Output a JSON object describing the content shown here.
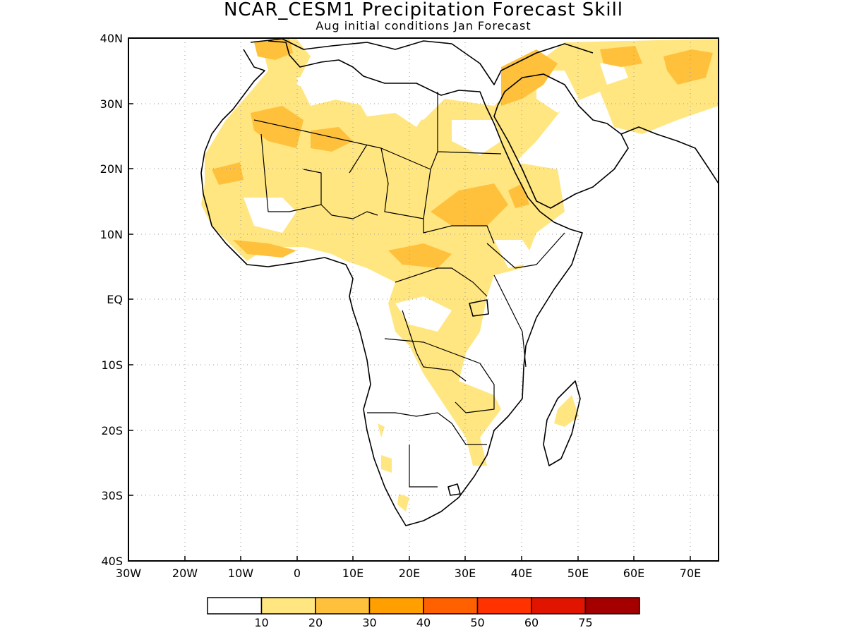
{
  "title": "NCAR_CESM1 Precipitation Forecast Skill",
  "subtitle": "Aug initial conditions  Jan Forecast",
  "map": {
    "lon_range": [
      -30,
      75
    ],
    "lat_range": [
      -40,
      40
    ],
    "lat_ticks": [
      {
        "value": 40,
        "label": "40N"
      },
      {
        "value": 30,
        "label": "30N"
      },
      {
        "value": 20,
        "label": "20N"
      },
      {
        "value": 10,
        "label": "10N"
      },
      {
        "value": 0,
        "label": "EQ"
      },
      {
        "value": -10,
        "label": "10S"
      },
      {
        "value": -20,
        "label": "20S"
      },
      {
        "value": -30,
        "label": "30S"
      },
      {
        "value": -40,
        "label": "40S"
      }
    ],
    "lon_ticks": [
      {
        "value": -30,
        "label": "30W"
      },
      {
        "value": -20,
        "label": "20W"
      },
      {
        "value": -10,
        "label": "10W"
      },
      {
        "value": 0,
        "label": "0"
      },
      {
        "value": 10,
        "label": "10E"
      },
      {
        "value": 20,
        "label": "20E"
      },
      {
        "value": 30,
        "label": "30E"
      },
      {
        "value": 40,
        "label": "40E"
      },
      {
        "value": 50,
        "label": "50E"
      },
      {
        "value": 60,
        "label": "60E"
      },
      {
        "value": 70,
        "label": "70E"
      }
    ],
    "grid": "dotted"
  },
  "colorbar": {
    "colors": [
      "#ffffff",
      "#ffe680",
      "#ffc03c",
      "#ffa000",
      "#ff6000",
      "#ff3200",
      "#e11400",
      "#a50000"
    ],
    "labels": [
      "10",
      "20",
      "30",
      "40",
      "50",
      "60",
      "75"
    ]
  }
}
